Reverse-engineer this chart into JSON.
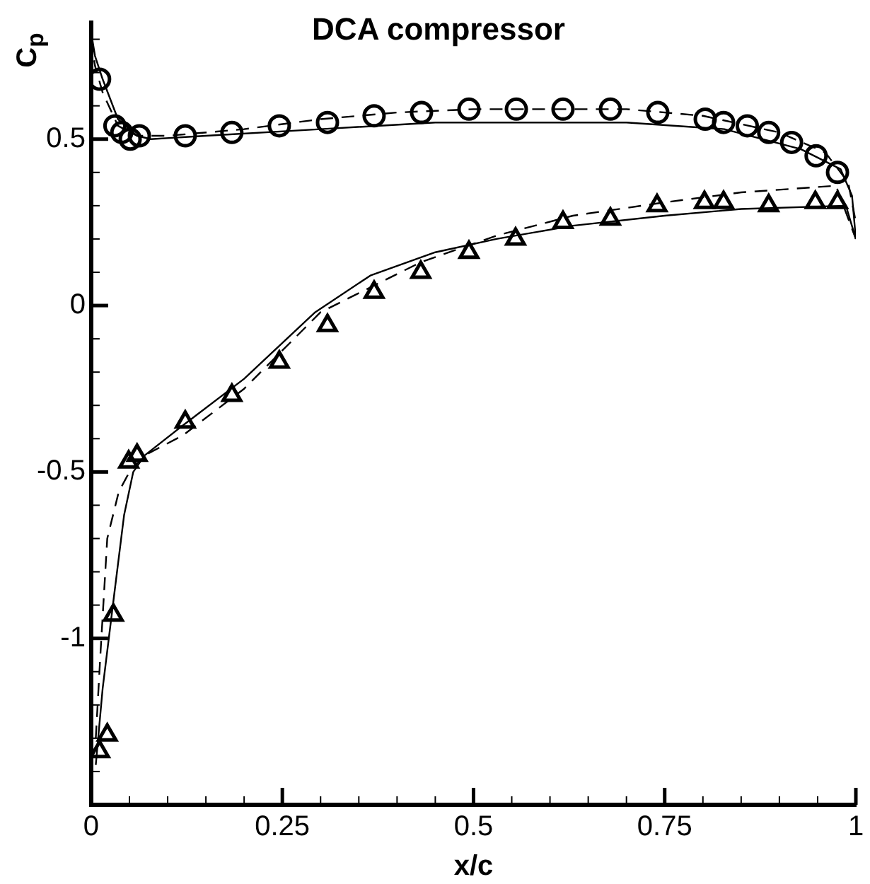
{
  "chart_data": {
    "type": "scatter",
    "title": "DCA compressor",
    "xlabel": "x/c",
    "ylabel": "C$_{p}$",
    "xlim": [
      0,
      1
    ],
    "ylim": [
      -1.5,
      0.85
    ],
    "xticks": [
      0,
      {
        "value": 0.05,
        "label": null
      },
      {
        "value": 0.1,
        "label": null
      },
      {
        "value": 0.15,
        "label": null
      },
      {
        "value": 0.2,
        "label": null
      },
      0.25,
      {
        "value": 0.3,
        "label": null
      },
      {
        "value": 0.35,
        "label": null
      },
      {
        "value": 0.4,
        "label": null
      },
      {
        "value": 0.45,
        "label": null
      },
      0.5,
      {
        "value": 0.55,
        "label": null
      },
      {
        "value": 0.6,
        "label": null
      },
      {
        "value": 0.65,
        "label": null
      },
      {
        "value": 0.7,
        "label": null
      },
      0.75,
      {
        "value": 0.8,
        "label": null
      },
      {
        "value": 0.85,
        "label": null
      },
      {
        "value": 0.9,
        "label": null
      },
      {
        "value": 0.95,
        "label": null
      },
      1
    ],
    "yticks": [
      {
        "value": -1.4,
        "label": null
      },
      {
        "value": -1.3,
        "label": null
      },
      {
        "value": -1.2,
        "label": null
      },
      {
        "value": -1.1,
        "label": null
      },
      -1,
      {
        "value": -0.9,
        "label": null
      },
      {
        "value": -0.8,
        "label": null
      },
      {
        "value": -0.7,
        "label": null
      },
      {
        "value": -0.6,
        "label": null
      },
      -0.5,
      {
        "value": -0.4,
        "label": null
      },
      {
        "value": -0.3,
        "label": null
      },
      {
        "value": -0.2,
        "label": null
      },
      {
        "value": -0.1,
        "label": null
      },
      0,
      {
        "value": 0.1,
        "label": null
      },
      {
        "value": 0.2,
        "label": null
      },
      {
        "value": 0.3,
        "label": null
      },
      {
        "value": 0.4,
        "label": null
      },
      0.5,
      {
        "value": 0.6,
        "label": null
      },
      {
        "value": 0.7,
        "label": null
      },
      {
        "value": 0.8,
        "label": null
      }
    ],
    "legend": false,
    "series": [
      {
        "marker": "circle",
        "color": "#000000",
        "x": [
          0.011,
          0.031,
          0.04,
          0.051,
          0.063,
          0.123,
          0.184,
          0.246,
          0.309,
          0.37,
          0.432,
          0.494,
          0.556,
          0.617,
          0.679,
          0.741,
          0.803,
          0.827,
          0.858,
          0.886,
          0.916,
          0.948,
          0.976
        ],
        "values": [
          0.68,
          0.54,
          0.52,
          0.5,
          0.51,
          0.51,
          0.52,
          0.54,
          0.55,
          0.57,
          0.58,
          0.59,
          0.59,
          0.59,
          0.59,
          0.58,
          0.56,
          0.55,
          0.54,
          0.52,
          0.49,
          0.45,
          0.4
        ]
      },
      {
        "marker": "triangle",
        "color": "#000000",
        "x": [
          0.011,
          0.021,
          0.029,
          0.049,
          0.06,
          0.123,
          0.184,
          0.246,
          0.309,
          0.37,
          0.431,
          0.494,
          0.555,
          0.617,
          0.679,
          0.74,
          0.802,
          0.827,
          0.886,
          0.947,
          0.976
        ],
        "values": [
          -1.34,
          -1.29,
          -0.93,
          -0.47,
          -0.45,
          -0.35,
          -0.27,
          -0.17,
          -0.06,
          0.04,
          0.1,
          0.16,
          0.2,
          0.25,
          0.26,
          0.3,
          0.31,
          0.31,
          0.3,
          0.31,
          0.31
        ]
      },
      {
        "type": "line",
        "marker": "none",
        "line_style": "solid",
        "color": "#000000",
        "x": [
          0,
          0.005,
          0.015,
          0.035,
          0.06,
          0.078,
          0.15,
          0.3,
          0.45,
          0.563,
          0.7,
          0.828,
          0.928,
          0.98,
          0.995,
          1
        ],
        "values": [
          0.82,
          0.75,
          0.68,
          0.56,
          0.51,
          0.5,
          0.51,
          0.53,
          0.55,
          0.55,
          0.55,
          0.53,
          0.47,
          0.41,
          0.33,
          0.2
        ]
      },
      {
        "type": "line",
        "marker": "none",
        "line_style": "dashed",
        "color": "#000000",
        "x": [
          0,
          0.005,
          0.015,
          0.035,
          0.06,
          0.1,
          0.2,
          0.3,
          0.4,
          0.5,
          0.6,
          0.7,
          0.8,
          0.9,
          0.96,
          0.99,
          1
        ],
        "values": [
          0.8,
          0.72,
          0.64,
          0.54,
          0.51,
          0.51,
          0.53,
          0.56,
          0.58,
          0.59,
          0.59,
          0.59,
          0.57,
          0.52,
          0.46,
          0.37,
          0.25
        ]
      },
      {
        "type": "line",
        "marker": "none",
        "line_style": "solid",
        "color": "#000000",
        "x": [
          0.006,
          0.015,
          0.03,
          0.043,
          0.055,
          0.07,
          0.12,
          0.2,
          0.293,
          0.365,
          0.45,
          0.53,
          0.63,
          0.75,
          0.85,
          0.987,
          1
        ],
        "values": [
          -1.38,
          -1.15,
          -0.87,
          -0.63,
          -0.5,
          -0.45,
          -0.36,
          -0.22,
          -0.02,
          0.09,
          0.16,
          0.2,
          0.24,
          0.27,
          0.29,
          0.3,
          0.2
        ]
      },
      {
        "type": "line",
        "marker": "none",
        "line_style": "dashed",
        "color": "#000000",
        "x": [
          0.006,
          0.012,
          0.021,
          0.036,
          0.05,
          0.07,
          0.12,
          0.2,
          0.3,
          0.431,
          0.53,
          0.63,
          0.75,
          0.85,
          0.974,
          1
        ],
        "values": [
          -1.3,
          -1.05,
          -0.7,
          -0.56,
          -0.5,
          -0.45,
          -0.39,
          -0.25,
          -0.02,
          0.13,
          0.21,
          0.27,
          0.31,
          0.34,
          0.36,
          0.2
        ]
      }
    ]
  }
}
